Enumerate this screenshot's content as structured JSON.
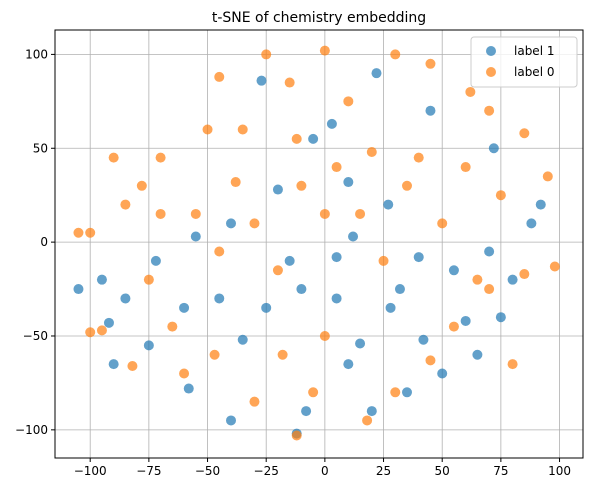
{
  "chart_data": {
    "type": "scatter",
    "title": "t-SNE of chemistry embedding",
    "xlim": [
      -115,
      110
    ],
    "ylim": [
      -115,
      113
    ],
    "xticks": [
      {
        "value": -100,
        "label": "−100"
      },
      {
        "value": -75,
        "label": "−75"
      },
      {
        "value": -50,
        "label": "−50"
      },
      {
        "value": -25,
        "label": "−25"
      },
      0,
      25,
      50,
      75,
      100
    ],
    "yticks": [
      {
        "value": -100,
        "label": "−100"
      },
      {
        "value": -50,
        "label": "−50"
      },
      0,
      50,
      100
    ],
    "grid": true,
    "legend": "upper right",
    "alpha": 0.7,
    "series": [
      {
        "name": "label 1",
        "color": "#1f77b4",
        "x": [
          -27,
          -12,
          -90,
          -105,
          -92,
          -58,
          -35,
          -10,
          5,
          15,
          20,
          35,
          42,
          60,
          75,
          88,
          92,
          80,
          70,
          55,
          40,
          27,
          10,
          -5,
          3,
          -20,
          -40,
          -55,
          -72,
          -85,
          -75,
          -45,
          -25,
          -15,
          5,
          12,
          28,
          50,
          65,
          45,
          22,
          -8,
          -40,
          -95,
          -60,
          10,
          32,
          72
        ],
        "values": [
          86,
          -102,
          -65,
          -25,
          -43,
          -78,
          -52,
          -25,
          -30,
          -54,
          -90,
          -80,
          -52,
          -42,
          -40,
          10,
          20,
          -20,
          -5,
          -15,
          -8,
          20,
          32,
          55,
          63,
          28,
          10,
          3,
          -10,
          -30,
          -55,
          -30,
          -35,
          -10,
          -8,
          3,
          -35,
          -70,
          -60,
          70,
          90,
          -90,
          -95,
          -20,
          -35,
          -65,
          -25,
          50
        ]
      },
      {
        "name": "label 0",
        "color": "#ff7f0e",
        "x": [
          -105,
          -100,
          -90,
          -85,
          -78,
          -70,
          -75,
          -65,
          -60,
          -45,
          -50,
          -38,
          -30,
          -25,
          -15,
          -12,
          -5,
          -12,
          0,
          10,
          20,
          30,
          45,
          62,
          70,
          85,
          95,
          98,
          85,
          70,
          55,
          45,
          30,
          18,
          0,
          -18,
          -30,
          -47,
          -55,
          -45,
          -20,
          0,
          15,
          35,
          50,
          65,
          80,
          -82,
          -95,
          -100,
          -70,
          5,
          25,
          40,
          60,
          75,
          -10,
          -35
        ],
        "values": [
          5,
          5,
          45,
          20,
          30,
          45,
          -20,
          -45,
          -70,
          88,
          60,
          32,
          10,
          100,
          85,
          55,
          -80,
          -103,
          102,
          75,
          48,
          100,
          95,
          80,
          70,
          58,
          35,
          -13,
          -17,
          -25,
          -45,
          -63,
          -80,
          -95,
          -50,
          -60,
          -85,
          -60,
          15,
          -5,
          -15,
          15,
          15,
          30,
          10,
          -20,
          -65,
          -66,
          -47,
          -48,
          15,
          40,
          -10,
          45,
          40,
          25,
          30,
          60
        ]
      }
    ]
  }
}
